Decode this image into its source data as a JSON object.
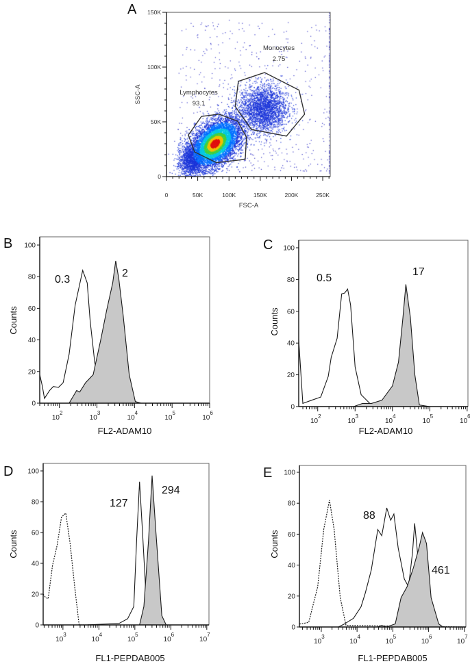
{
  "chart_data": [
    {
      "panel": "A",
      "type": "scatter",
      "xlabel": "FSC-A",
      "ylabel": "SSC-A",
      "xlim": [
        0,
        262000
      ],
      "ylim": [
        0,
        150000
      ],
      "x_ticks": [
        0,
        50000,
        100000,
        150000,
        200000,
        250000
      ],
      "x_tick_labels": [
        "0",
        "50K",
        "100K",
        "150K",
        "200K",
        "250K"
      ],
      "y_ticks": [
        0,
        50000,
        100000,
        150000
      ],
      "y_tick_labels": [
        "0",
        "50K",
        "100K",
        "150K"
      ],
      "colormap": "density (blue-cyan-green-yellow-red)",
      "gates": [
        {
          "name": "Lymphocytes",
          "value": "93.1",
          "polygon": [
            [
              35000,
              38000
            ],
            [
              45000,
              22500
            ],
            [
              80000,
              12700
            ],
            [
              126000,
              15800
            ],
            [
              128000,
              36000
            ],
            [
              114000,
              50600
            ],
            [
              84000,
              57000
            ],
            [
              56000,
              55000
            ]
          ]
        },
        {
          "name": "Monocytes",
          "value": "2.75",
          "polygon": [
            [
              115000,
              87000
            ],
            [
              157000,
              95000
            ],
            [
              212000,
              79000
            ],
            [
              221000,
              57000
            ],
            [
              192000,
              37000
            ],
            [
              136000,
              43000
            ],
            [
              110000,
              64000
            ]
          ]
        }
      ]
    },
    {
      "panel": "B",
      "type": "area",
      "xlabel": "FL2-ADAM10",
      "ylabel": "Counts",
      "x_scale": "log",
      "xlim": [
        30,
        1000000
      ],
      "ylim": [
        0,
        100
      ],
      "x_ticks": [
        100,
        1000,
        10000,
        100000,
        1000000
      ],
      "y_ticks": [
        0,
        20,
        40,
        60,
        80,
        100
      ],
      "series": [
        {
          "label": "0.3",
          "style": "open",
          "points": [
            [
              30,
              18
            ],
            [
              35,
              11
            ],
            [
              40,
              3
            ],
            [
              55,
              8
            ],
            [
              69,
              10.5
            ],
            [
              95,
              10
            ],
            [
              126,
              13
            ],
            [
              182,
              31
            ],
            [
              263,
              62
            ],
            [
              417,
              84
            ],
            [
              550,
              76
            ],
            [
              661,
              52
            ],
            [
              871,
              26
            ],
            [
              1380,
              3
            ],
            [
              2000,
              0
            ]
          ]
        },
        {
          "label": "2",
          "style": "filled",
          "points": [
            [
              182,
              0
            ],
            [
              288,
              8
            ],
            [
              347,
              7
            ],
            [
              501,
              13
            ],
            [
              794,
              18
            ],
            [
              1260,
              40
            ],
            [
              1820,
              59
            ],
            [
              2630,
              76
            ],
            [
              3160,
              90
            ],
            [
              3800,
              79
            ],
            [
              5010,
              55
            ],
            [
              7240,
              18
            ],
            [
              10500,
              1
            ],
            [
              15100,
              0
            ]
          ]
        }
      ]
    },
    {
      "panel": "C",
      "type": "area",
      "xlabel": "FL2-ADAM10",
      "ylabel": "Counts",
      "x_scale": "log",
      "xlim": [
        31,
        1050000
      ],
      "ylim": [
        0,
        100
      ],
      "x_ticks": [
        100,
        1000,
        10000,
        100000,
        1000000
      ],
      "y_ticks": [
        0,
        20,
        40,
        60,
        80,
        100
      ],
      "series": [
        {
          "label": "0.5",
          "style": "open",
          "points": [
            [
              31,
              42
            ],
            [
              40,
              2
            ],
            [
              69,
              4
            ],
            [
              120,
              6
            ],
            [
              191,
              19
            ],
            [
              229,
              31
            ],
            [
              331,
              43
            ],
            [
              437,
              71
            ],
            [
              525,
              71.5
            ],
            [
              631,
              74
            ],
            [
              759,
              64
            ],
            [
              1000,
              25
            ],
            [
              1450,
              7.5
            ],
            [
              3020,
              0
            ]
          ]
        },
        {
          "label": "17",
          "style": "filled",
          "points": [
            [
              912,
              0
            ],
            [
              1580,
              2
            ],
            [
              2750,
              2
            ],
            [
              5250,
              4
            ],
            [
              10000,
              13
            ],
            [
              14500,
              28
            ],
            [
              19100,
              56
            ],
            [
              22900,
              77
            ],
            [
              30200,
              56
            ],
            [
              39800,
              20
            ],
            [
              52500,
              1
            ],
            [
              100000,
              0
            ]
          ]
        }
      ]
    },
    {
      "panel": "D",
      "type": "area",
      "xlabel": "FL1-PEPDAB005",
      "ylabel": "Counts",
      "x_scale": "log",
      "xlim": [
        282,
        11500000
      ],
      "ylim": [
        0,
        100
      ],
      "x_ticks": [
        1000,
        10000,
        100000,
        1000000,
        10000000
      ],
      "y_ticks": [
        0,
        20,
        40,
        60,
        80,
        100
      ],
      "series": [
        {
          "label": "",
          "style": "dotted",
          "points": [
            [
              282,
              20
            ],
            [
              324,
              18
            ],
            [
              389,
              17
            ],
            [
              513,
              38.5
            ],
            [
              692,
              52
            ],
            [
              912,
              70
            ],
            [
              1200,
              72.6
            ],
            [
              1580,
              53
            ],
            [
              2140,
              24
            ],
            [
              2820,
              0
            ],
            [
              8000,
              0
            ]
          ]
        },
        {
          "label": "127",
          "style": "open",
          "points": [
            [
              4570,
              0
            ],
            [
              36300,
              1
            ],
            [
              63100,
              4
            ],
            [
              93300,
              12
            ],
            [
              112000,
              55
            ],
            [
              135000,
              93
            ],
            [
              162000,
              62
            ],
            [
              219000,
              6
            ],
            [
              288000,
              0
            ]
          ]
        },
        {
          "label": "294",
          "style": "filled",
          "points": [
            [
              135000,
              0
            ],
            [
              178000,
              12
            ],
            [
              240000,
              55
            ],
            [
              302000,
              97
            ],
            [
              380000,
              62
            ],
            [
              562000,
              6
            ],
            [
              741000,
              0
            ]
          ]
        }
      ]
    },
    {
      "panel": "E",
      "type": "area",
      "xlabel": "FL1-PEPDAB005",
      "ylabel": "Counts",
      "x_scale": "log",
      "xlim": [
        245,
        11000000
      ],
      "ylim": [
        0,
        100
      ],
      "x_ticks": [
        1000,
        10000,
        100000,
        1000000,
        10000000
      ],
      "y_ticks": [
        0,
        20,
        40,
        60,
        80,
        100
      ],
      "series": [
        {
          "label": "",
          "style": "dotted",
          "points": [
            [
              245,
              2
            ],
            [
              275,
              2
            ],
            [
              447,
              3
            ],
            [
              794,
              26
            ],
            [
              1170,
              63
            ],
            [
              1700,
              82
            ],
            [
              2290,
              63
            ],
            [
              3390,
              19
            ],
            [
              4900,
              1
            ],
            [
              11000000,
              0
            ]
          ]
        },
        {
          "label": "88",
          "style": "open",
          "points": [
            [
              3020,
              0
            ],
            [
              4470,
              2
            ],
            [
              7940,
              5.6
            ],
            [
              12900,
              13
            ],
            [
              17000,
              22
            ],
            [
              25100,
              37
            ],
            [
              38000,
              63
            ],
            [
              49000,
              59
            ],
            [
              67600,
              77
            ],
            [
              87100,
              69
            ],
            [
              107000,
              73
            ],
            [
              141000,
              51
            ],
            [
              209000,
              31
            ],
            [
              275000,
              26
            ],
            [
              355000,
              48
            ],
            [
              407000,
              67
            ],
            [
              490000,
              48
            ],
            [
              661000,
              4
            ],
            [
              1170000,
              0
            ]
          ]
        },
        {
          "label": "461",
          "style": "filled",
          "points": [
            [
              37200,
              0
            ],
            [
              49000,
              1
            ],
            [
              66100,
              0
            ],
            [
              117000,
              2
            ],
            [
              170000,
              19
            ],
            [
              251000,
              26
            ],
            [
              372000,
              38
            ],
            [
              537000,
              51
            ],
            [
              676000,
              61
            ],
            [
              871000,
              54
            ],
            [
              1170000,
              19
            ],
            [
              1910000,
              2
            ],
            [
              2510000,
              0
            ]
          ]
        }
      ]
    }
  ],
  "colors": {
    "filled": "#c8c8c8",
    "line": "#1a1a1a",
    "gate": "#333333"
  }
}
